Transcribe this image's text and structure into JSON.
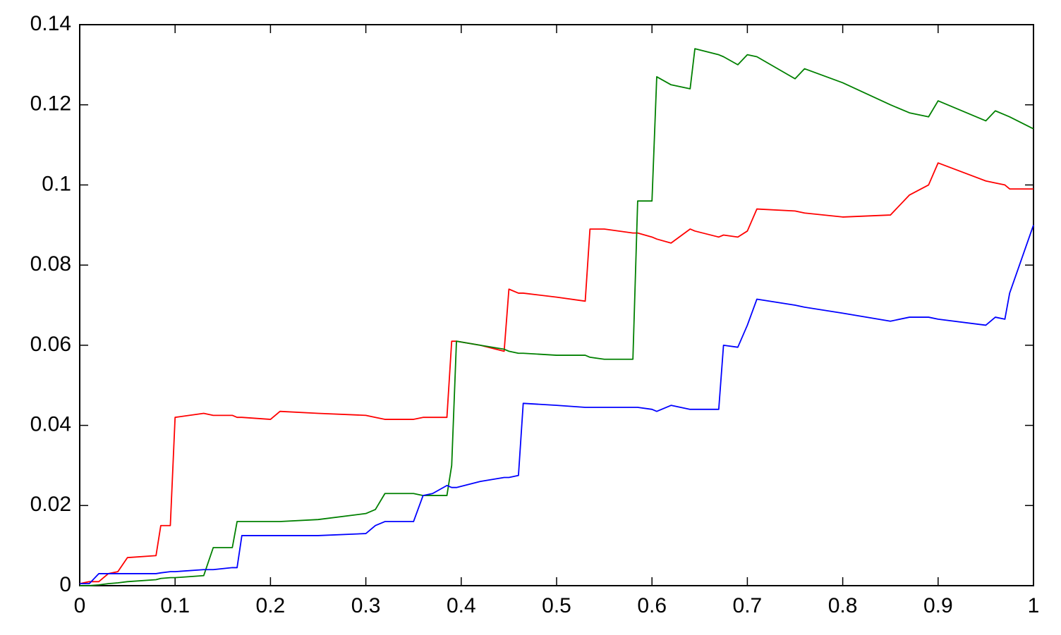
{
  "chart_data": {
    "type": "line",
    "x": [
      0,
      0.01,
      0.02,
      0.03,
      0.04,
      0.05,
      0.08,
      0.085,
      0.095,
      0.1,
      0.13,
      0.14,
      0.16,
      0.165,
      0.17,
      0.2,
      0.21,
      0.25,
      0.3,
      0.31,
      0.32,
      0.35,
      0.36,
      0.37,
      0.385,
      0.39,
      0.395,
      0.42,
      0.445,
      0.45,
      0.46,
      0.465,
      0.5,
      0.53,
      0.535,
      0.55,
      0.58,
      0.585,
      0.6,
      0.605,
      0.62,
      0.64,
      0.645,
      0.67,
      0.675,
      0.69,
      0.7,
      0.71,
      0.75,
      0.76,
      0.8,
      0.85,
      0.87,
      0.89,
      0.9,
      0.95,
      0.96,
      0.97,
      0.975,
      1.0
    ],
    "series": [
      {
        "color": "#ff0000",
        "values": [
          0.0005,
          0.001,
          0.001,
          0.003,
          0.0035,
          0.007,
          0.0075,
          0.015,
          0.015,
          0.042,
          0.043,
          0.0425,
          0.0425,
          0.042,
          0.042,
          0.0415,
          0.0435,
          0.043,
          0.0425,
          0.042,
          0.0415,
          0.0415,
          0.042,
          0.042,
          0.042,
          0.061,
          0.061,
          0.06,
          0.0585,
          0.074,
          0.073,
          0.073,
          0.072,
          0.071,
          0.089,
          0.089,
          0.088,
          0.088,
          0.087,
          0.0865,
          0.0855,
          0.089,
          0.0885,
          0.087,
          0.0875,
          0.087,
          0.0885,
          0.094,
          0.0935,
          0.093,
          0.092,
          0.0925,
          0.0975,
          0.1,
          0.1055,
          0.101,
          0.1005,
          0.1,
          0.099,
          0.099
        ]
      },
      {
        "color": "#008000",
        "values": [
          0,
          0,
          0.0002,
          0.0005,
          0.0007,
          0.001,
          0.0015,
          0.0018,
          0.002,
          0.002,
          0.0025,
          0.0095,
          0.0095,
          0.016,
          0.016,
          0.016,
          0.016,
          0.0165,
          0.018,
          0.019,
          0.023,
          0.023,
          0.0225,
          0.0225,
          0.0225,
          0.03,
          0.061,
          0.06,
          0.059,
          0.0585,
          0.058,
          0.058,
          0.0575,
          0.0575,
          0.057,
          0.0565,
          0.0565,
          0.096,
          0.096,
          0.127,
          0.125,
          0.124,
          0.134,
          0.1325,
          0.132,
          0.13,
          0.1325,
          0.132,
          0.1265,
          0.129,
          0.1255,
          0.12,
          0.118,
          0.117,
          0.121,
          0.116,
          0.1185,
          0.1175,
          0.117,
          0.114
        ]
      },
      {
        "color": "#0000ff",
        "values": [
          0.0005,
          0.0005,
          0.003,
          0.003,
          0.003,
          0.003,
          0.003,
          0.0032,
          0.0035,
          0.0035,
          0.004,
          0.004,
          0.0045,
          0.0045,
          0.0125,
          0.0125,
          0.0125,
          0.0125,
          0.013,
          0.015,
          0.016,
          0.016,
          0.0225,
          0.023,
          0.025,
          0.0245,
          0.0245,
          0.026,
          0.027,
          0.027,
          0.0275,
          0.0455,
          0.045,
          0.0445,
          0.0445,
          0.0445,
          0.0445,
          0.0445,
          0.044,
          0.0435,
          0.045,
          0.044,
          0.044,
          0.044,
          0.06,
          0.0595,
          0.065,
          0.0715,
          0.07,
          0.0695,
          0.068,
          0.066,
          0.067,
          0.067,
          0.0665,
          0.065,
          0.067,
          0.0665,
          0.073,
          0.09
        ]
      }
    ],
    "xlim": [
      0,
      1
    ],
    "xticks": [
      0,
      0.1,
      0.2,
      0.3,
      0.4,
      0.5,
      0.6,
      0.7,
      0.8,
      0.9,
      1
    ],
    "ylim": [
      0,
      0.14
    ],
    "yticks": [
      0,
      0.02,
      0.04,
      0.06,
      0.08,
      0.1,
      0.12,
      0.14
    ]
  }
}
